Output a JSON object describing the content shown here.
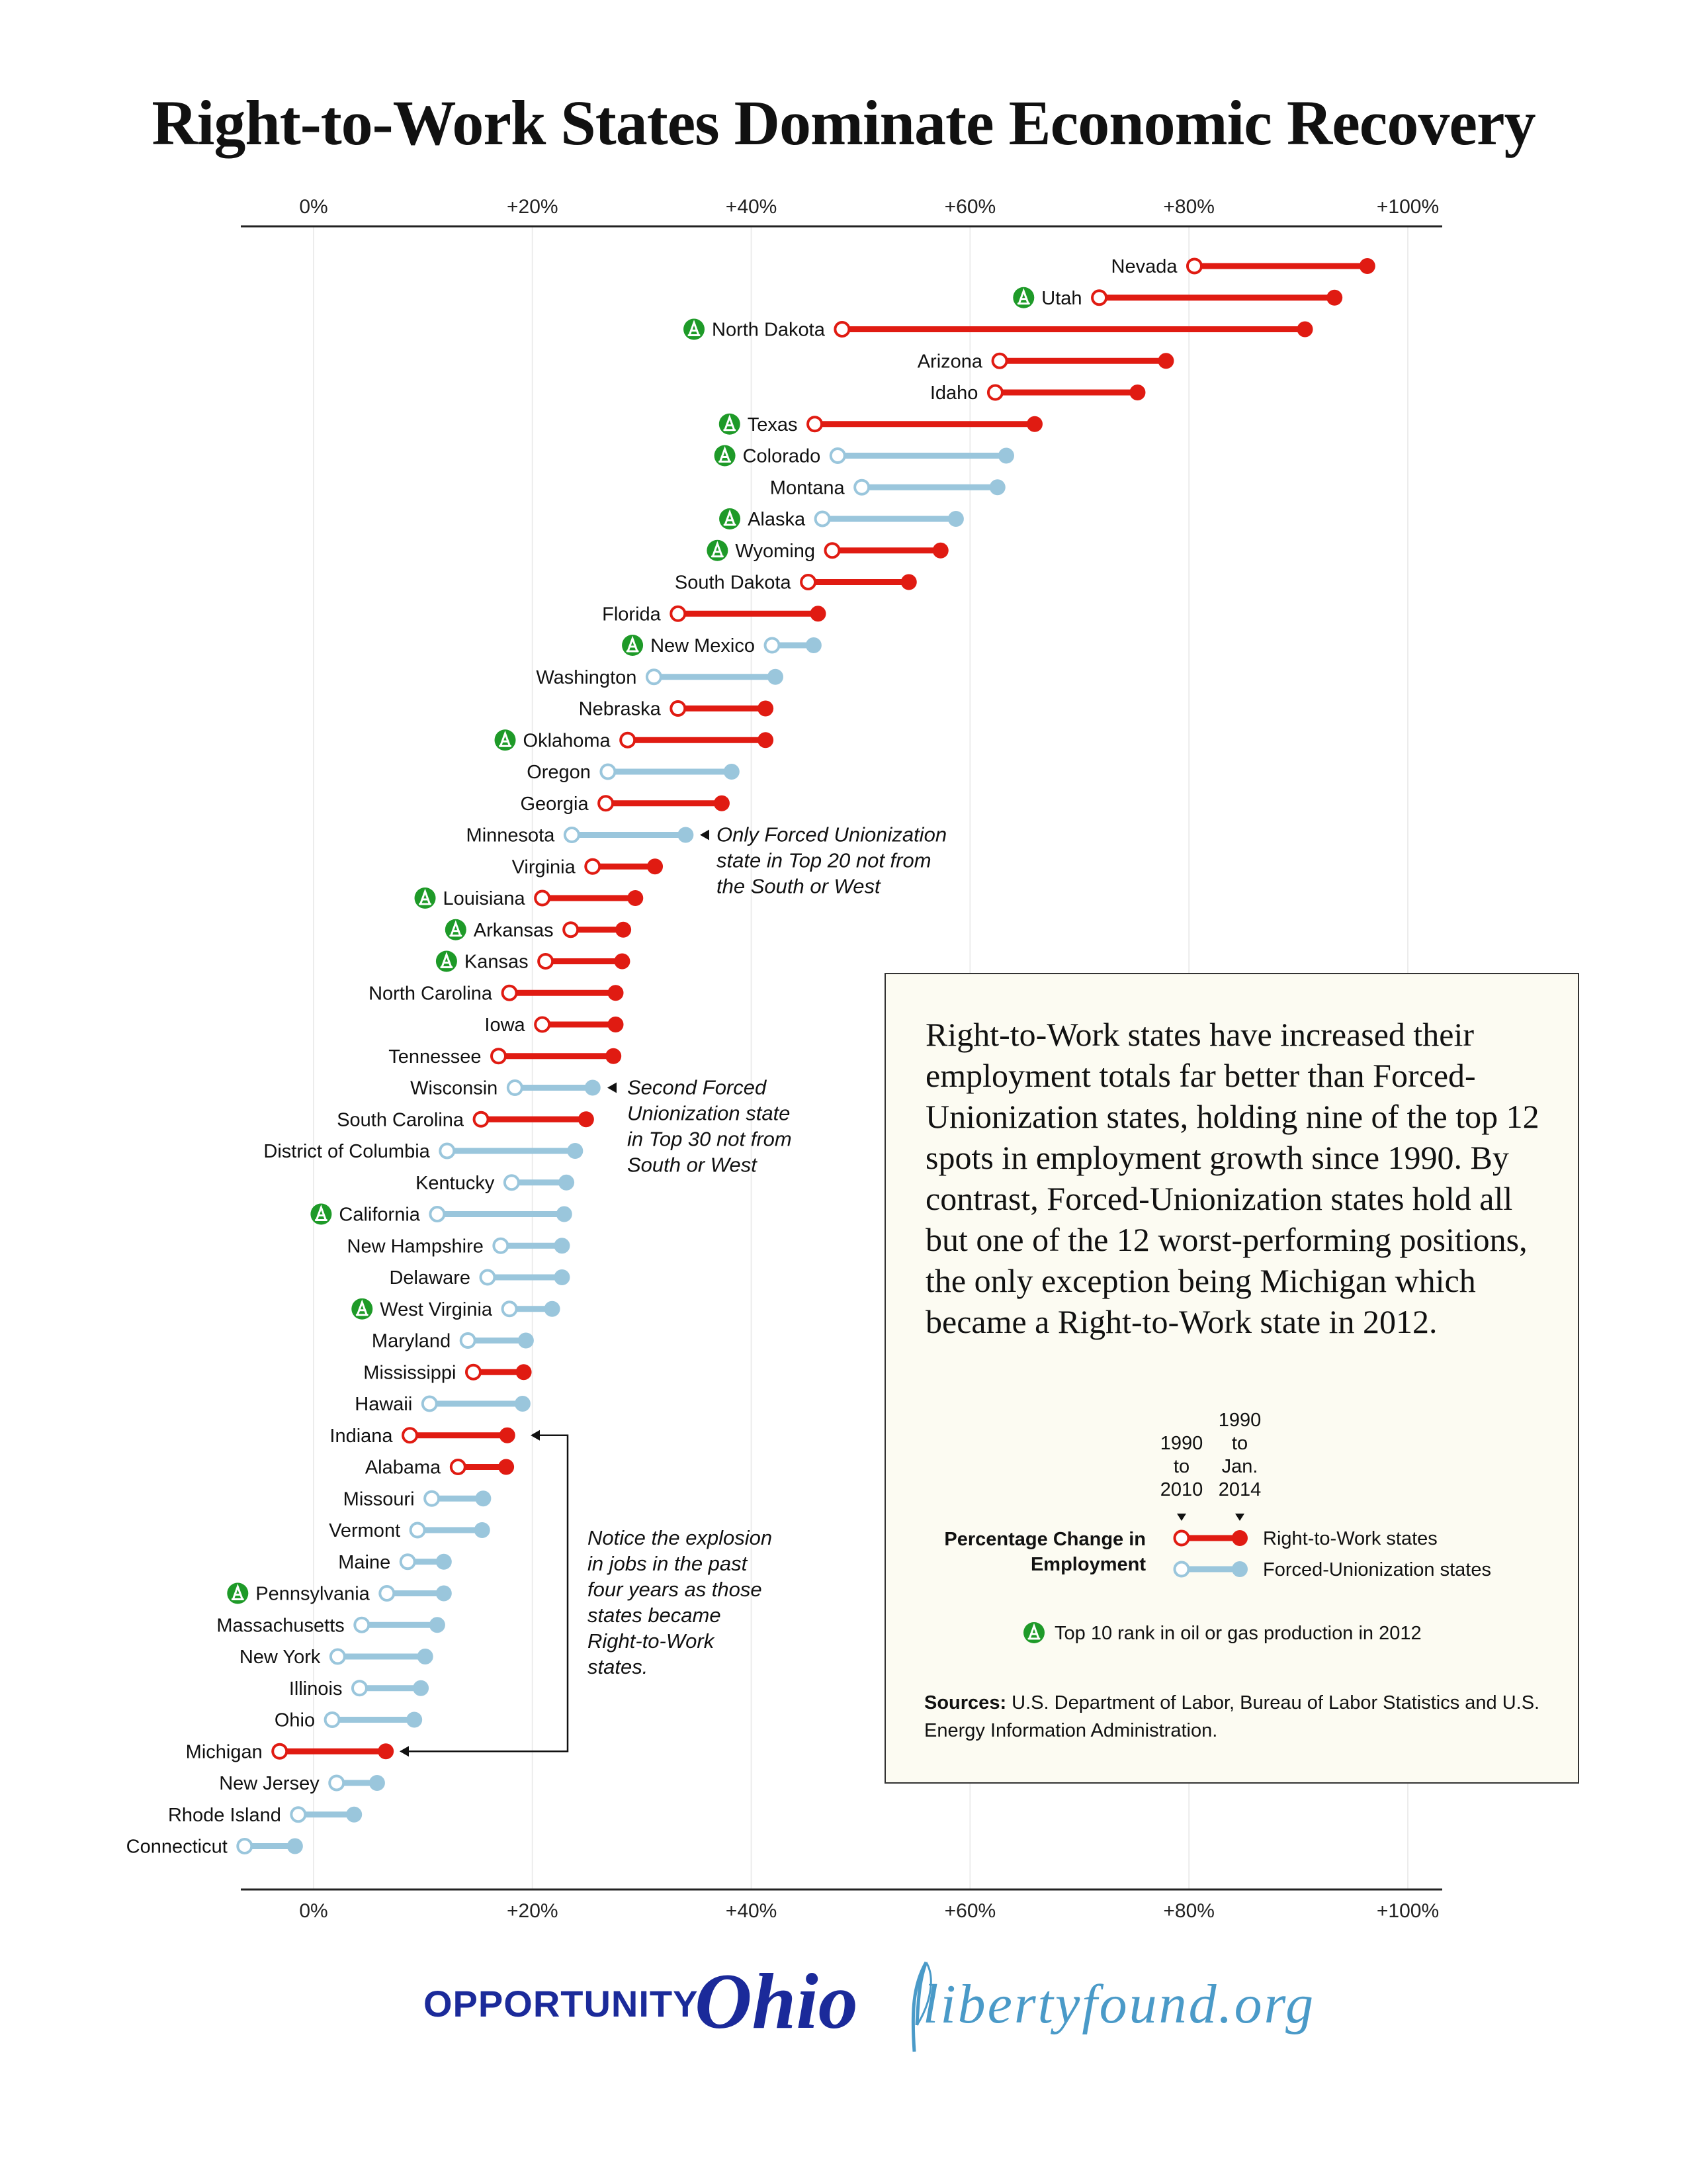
{
  "title": "Right-to-Work States Dominate Economic Recovery",
  "colors": {
    "right_to_work": "#e01b12",
    "forced_unionization": "#9ac6dc",
    "oil_gas_badge": "#1e9a28",
    "logo_blue": "#1b2a9a",
    "liberty_blue": "#4a9ac8"
  },
  "annotations": {
    "minnesota": [
      "Only Forced Unionization",
      "state in Top 20 not from",
      "the South or West"
    ],
    "wisconsin": [
      "Second Forced",
      "Unionization state",
      "in Top 30 not from",
      "South or West"
    ],
    "michigan_indiana": [
      "Notice the explosion",
      "in jobs in the past",
      "four years as those",
      "states became",
      "Right-to-Work",
      "states."
    ]
  },
  "infobox": {
    "text": "Right-to-Work states have increased their employment totals far better than Forced-Unionization states, holding nine of the top 12 spots in employment growth since 1990. By contrast, Forced-Unionization states hold all but one of the 12 worst-performing positions, the only exception being Michigan which became a Right-to-Work state in 2012.",
    "legend_title_1": "Percentage Change in",
    "legend_title_2": "Employment",
    "period_a": [
      "1990",
      "to",
      "2010"
    ],
    "period_b": [
      "1990",
      "to",
      "Jan.",
      "2014"
    ],
    "rtw_label": "Right-to-Work states",
    "fu_label": "Forced-Unionization states",
    "badge_label": "Top 10 rank in oil or gas production in 2012",
    "sources_label": "Sources:",
    "sources_text": "U.S. Department of Labor, Bureau of Labor Statistics and U.S. Energy Information Administration."
  },
  "logos": {
    "opportunity": "OPPORTUNITY",
    "ohio": "Ohio",
    "liberty": "libertyfound.org"
  },
  "chart_data": {
    "type": "dumbbell",
    "title": "Right-to-Work States Dominate Economic Recovery",
    "x_ticks": [
      "0%",
      "+20%",
      "+40%",
      "+60%",
      "+80%",
      "+100%"
    ],
    "x_tick_values": [
      0,
      20,
      40,
      60,
      80,
      100
    ],
    "xlim": [
      -6,
      102
    ],
    "unit": "percentage change in employment",
    "series": [
      {
        "name": "1990 to 2010",
        "key": "start"
      },
      {
        "name": "1990 to Jan. 2014",
        "key": "end"
      }
    ],
    "categories_legend": {
      "rtw": "Right-to-Work states",
      "fu": "Forced-Unionization states"
    },
    "states": [
      {
        "name": "Nevada",
        "type": "rtw",
        "start": 80.5,
        "end": 96.3,
        "oil": false
      },
      {
        "name": "Utah",
        "type": "rtw",
        "start": 71.8,
        "end": 93.3,
        "oil": true
      },
      {
        "name": "North Dakota",
        "type": "rtw",
        "start": 48.3,
        "end": 90.6,
        "oil": true
      },
      {
        "name": "Arizona",
        "type": "rtw",
        "start": 62.7,
        "end": 77.9,
        "oil": false
      },
      {
        "name": "Idaho",
        "type": "rtw",
        "start": 62.3,
        "end": 75.3,
        "oil": false
      },
      {
        "name": "Texas",
        "type": "rtw",
        "start": 45.8,
        "end": 65.9,
        "oil": true
      },
      {
        "name": "Colorado",
        "type": "fu",
        "start": 47.9,
        "end": 63.3,
        "oil": true
      },
      {
        "name": "Montana",
        "type": "fu",
        "start": 50.1,
        "end": 62.5,
        "oil": false
      },
      {
        "name": "Alaska",
        "type": "fu",
        "start": 46.5,
        "end": 58.7,
        "oil": true
      },
      {
        "name": "Wyoming",
        "type": "rtw",
        "start": 47.4,
        "end": 57.3,
        "oil": true
      },
      {
        "name": "South Dakota",
        "type": "rtw",
        "start": 45.2,
        "end": 54.4,
        "oil": false
      },
      {
        "name": "Florida",
        "type": "rtw",
        "start": 33.3,
        "end": 46.1,
        "oil": false
      },
      {
        "name": "New Mexico",
        "type": "fu",
        "start": 41.9,
        "end": 45.7,
        "oil": true
      },
      {
        "name": "Washington",
        "type": "fu",
        "start": 31.1,
        "end": 42.2,
        "oil": false
      },
      {
        "name": "Nebraska",
        "type": "rtw",
        "start": 33.3,
        "end": 41.3,
        "oil": false
      },
      {
        "name": "Oklahoma",
        "type": "rtw",
        "start": 28.7,
        "end": 41.3,
        "oil": true
      },
      {
        "name": "Oregon",
        "type": "fu",
        "start": 26.9,
        "end": 38.2,
        "oil": false
      },
      {
        "name": "Georgia",
        "type": "rtw",
        "start": 26.7,
        "end": 37.3,
        "oil": false
      },
      {
        "name": "Minnesota",
        "type": "fu",
        "start": 23.6,
        "end": 34.0,
        "oil": false
      },
      {
        "name": "Virginia",
        "type": "rtw",
        "start": 25.5,
        "end": 31.2,
        "oil": false
      },
      {
        "name": "Louisiana",
        "type": "rtw",
        "start": 20.9,
        "end": 29.4,
        "oil": true
      },
      {
        "name": "Arkansas",
        "type": "rtw",
        "start": 23.5,
        "end": 28.3,
        "oil": true
      },
      {
        "name": "Kansas",
        "type": "rtw",
        "start": 21.2,
        "end": 28.2,
        "oil": true
      },
      {
        "name": "North Carolina",
        "type": "rtw",
        "start": 17.9,
        "end": 27.6,
        "oil": false
      },
      {
        "name": "Iowa",
        "type": "rtw",
        "start": 20.9,
        "end": 27.6,
        "oil": false
      },
      {
        "name": "Tennessee",
        "type": "rtw",
        "start": 16.9,
        "end": 27.4,
        "oil": false
      },
      {
        "name": "Wisconsin",
        "type": "fu",
        "start": 18.4,
        "end": 25.5,
        "oil": false
      },
      {
        "name": "South Carolina",
        "type": "rtw",
        "start": 15.3,
        "end": 24.9,
        "oil": false
      },
      {
        "name": "District of Columbia",
        "type": "fu",
        "start": 12.2,
        "end": 23.9,
        "oil": false
      },
      {
        "name": "Kentucky",
        "type": "fu",
        "start": 18.1,
        "end": 23.1,
        "oil": false
      },
      {
        "name": "California",
        "type": "fu",
        "start": 11.3,
        "end": 22.9,
        "oil": true
      },
      {
        "name": "New Hampshire",
        "type": "fu",
        "start": 17.1,
        "end": 22.7,
        "oil": false
      },
      {
        "name": "Delaware",
        "type": "fu",
        "start": 15.9,
        "end": 22.7,
        "oil": false
      },
      {
        "name": "West Virginia",
        "type": "fu",
        "start": 17.9,
        "end": 21.8,
        "oil": true
      },
      {
        "name": "Maryland",
        "type": "fu",
        "start": 14.1,
        "end": 19.4,
        "oil": false
      },
      {
        "name": "Mississippi",
        "type": "rtw",
        "start": 14.6,
        "end": 19.2,
        "oil": false
      },
      {
        "name": "Hawaii",
        "type": "fu",
        "start": 10.6,
        "end": 19.1,
        "oil": false
      },
      {
        "name": "Indiana",
        "type": "rtw",
        "start": 8.8,
        "end": 17.7,
        "oil": false
      },
      {
        "name": "Alabama",
        "type": "rtw",
        "start": 13.2,
        "end": 17.6,
        "oil": false
      },
      {
        "name": "Missouri",
        "type": "fu",
        "start": 10.8,
        "end": 15.5,
        "oil": false
      },
      {
        "name": "Vermont",
        "type": "fu",
        "start": 9.5,
        "end": 15.4,
        "oil": false
      },
      {
        "name": "Maine",
        "type": "fu",
        "start": 8.6,
        "end": 11.9,
        "oil": false
      },
      {
        "name": "Pennsylvania",
        "type": "fu",
        "start": 6.7,
        "end": 11.9,
        "oil": true
      },
      {
        "name": "Massachusetts",
        "type": "fu",
        "start": 4.4,
        "end": 11.3,
        "oil": false
      },
      {
        "name": "New York",
        "type": "fu",
        "start": 2.2,
        "end": 10.2,
        "oil": false
      },
      {
        "name": "Illinois",
        "type": "fu",
        "start": 4.2,
        "end": 9.8,
        "oil": false
      },
      {
        "name": "Ohio",
        "type": "fu",
        "start": 1.7,
        "end": 9.2,
        "oil": false
      },
      {
        "name": "Michigan",
        "type": "rtw",
        "start": -3.1,
        "end": 6.6,
        "oil": false
      },
      {
        "name": "New Jersey",
        "type": "fu",
        "start": 2.1,
        "end": 5.8,
        "oil": false
      },
      {
        "name": "Rhode Island",
        "type": "fu",
        "start": -1.4,
        "end": 3.7,
        "oil": false
      },
      {
        "name": "Connecticut",
        "type": "fu",
        "start": -6.3,
        "end": -1.7,
        "oil": false
      }
    ]
  }
}
